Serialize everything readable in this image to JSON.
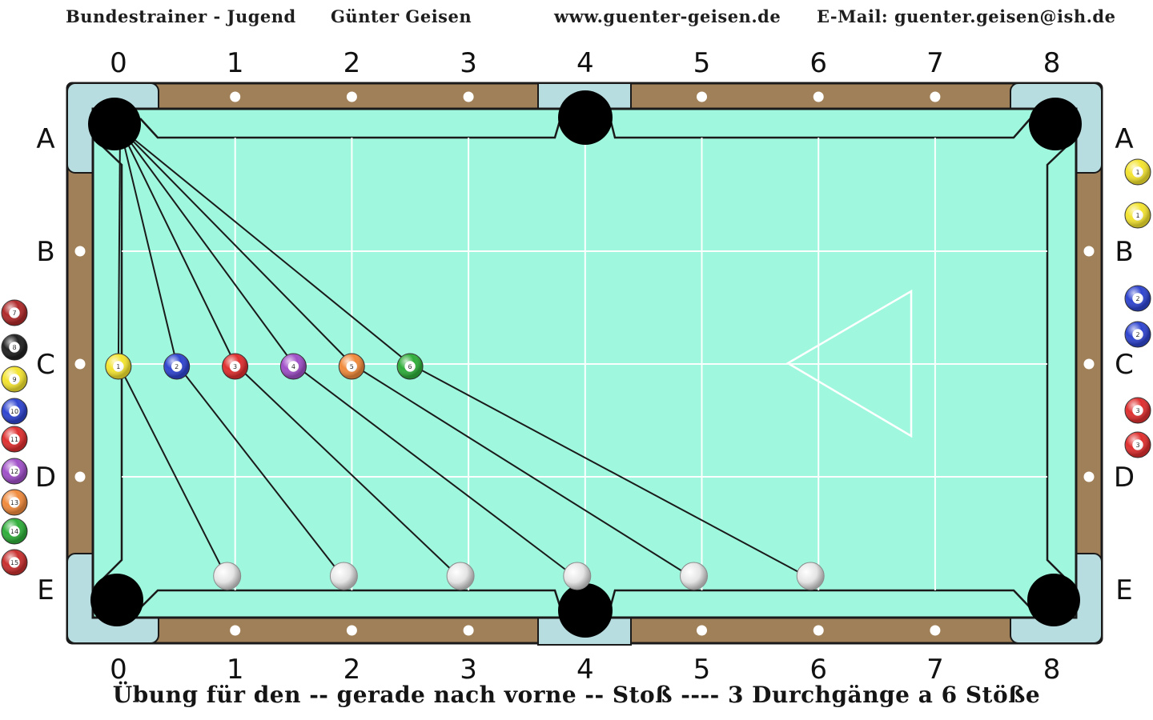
{
  "header": {
    "coach": "Bundestrainer - Jugend",
    "name": "Günter Geisen",
    "website": "www.guenter-geisen.de",
    "email": "E-Mail: guenter.geisen@ish.de"
  },
  "footer": {
    "caption": "Übung für den -- gerade nach vorne -- Stoß ---- 3 Durchgänge a 6 Stöße"
  },
  "diamonds": {
    "columns": [
      "0",
      "1",
      "2",
      "3",
      "4",
      "5",
      "6",
      "7",
      "8"
    ],
    "rows": [
      "A",
      "B",
      "C",
      "D",
      "E"
    ]
  },
  "colors": {
    "cloth": "#9ff8de",
    "rail": "#a08058",
    "pocket_plate": "#b8dde0",
    "ball_1": "#f4e430",
    "ball_2": "#2f45d0",
    "ball_3": "#e02f2f",
    "ball_4": "#a050c8",
    "ball_5": "#f08a3c",
    "ball_6": "#2fae3a"
  },
  "layout_balls": {
    "object_balls": [
      {
        "number": "1",
        "color": "ball_1",
        "col": 0.5,
        "row": 2
      },
      {
        "number": "2",
        "color": "ball_2",
        "col": 1.0,
        "row": 2
      },
      {
        "number": "3",
        "color": "ball_3",
        "col": 1.5,
        "row": 2
      },
      {
        "number": "4",
        "color": "ball_4",
        "col": 2.0,
        "row": 2
      },
      {
        "number": "5",
        "color": "ball_5",
        "col": 2.5,
        "row": 2
      },
      {
        "number": "6",
        "color": "ball_6",
        "col": 3.0,
        "row": 2
      }
    ],
    "cue_balls": [
      {
        "col": 1.0,
        "row": 4
      },
      {
        "col": 2.0,
        "row": 4
      },
      {
        "col": 3.0,
        "row": 4
      },
      {
        "col": 4.0,
        "row": 4
      },
      {
        "col": 5.0,
        "row": 4
      },
      {
        "col": 6.0,
        "row": 4
      }
    ],
    "target_pocket": "A0"
  },
  "left_ball_column": [
    {
      "number": "7",
      "color": "#b02a2a"
    },
    {
      "number": "8",
      "color": "#222222"
    },
    {
      "number": "9",
      "color": "#f4e430"
    },
    {
      "number": "10",
      "color": "#2f45d0"
    },
    {
      "number": "11",
      "color": "#e02f2f"
    },
    {
      "number": "12",
      "color": "#a050c8"
    },
    {
      "number": "13",
      "color": "#f08a3c"
    },
    {
      "number": "14",
      "color": "#2fae3a"
    },
    {
      "number": "15",
      "color": "#c8302f"
    }
  ],
  "right_ball_column": [
    {
      "number": "1",
      "color": "#f4e430"
    },
    {
      "number": "1",
      "color": "#f4e430"
    },
    {
      "number": "2",
      "color": "#2f45d0"
    },
    {
      "number": "2",
      "color": "#2f45d0"
    },
    {
      "number": "3",
      "color": "#e02f2f"
    },
    {
      "number": "3",
      "color": "#e02f2f"
    }
  ]
}
